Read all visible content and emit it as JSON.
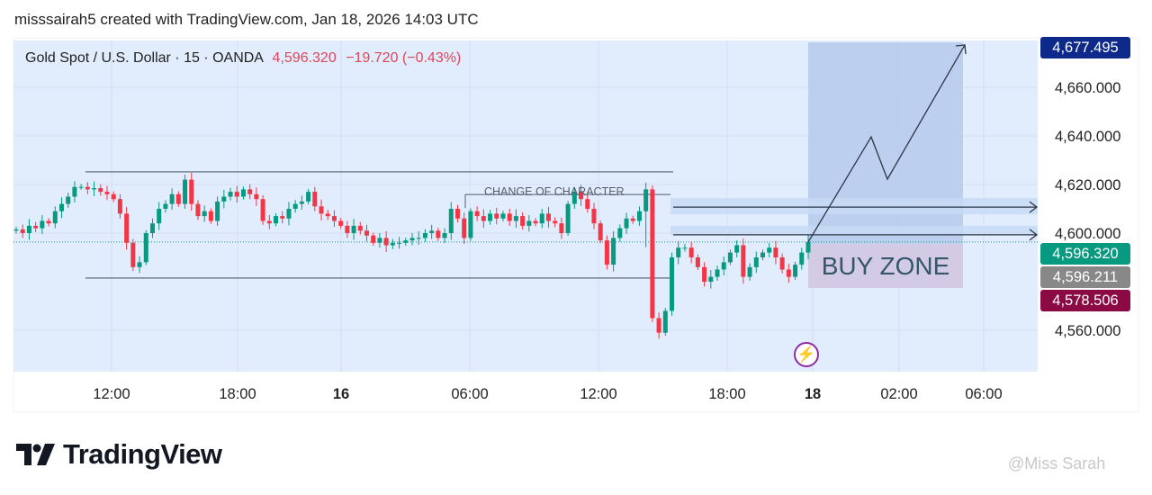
{
  "header": {
    "attribution": "misssairah5 created with TradingView.com, Jan 18, 2026 14:03 UTC"
  },
  "legend": {
    "symbol": "Gold Spot / U.S. Dollar · 15 · OANDA",
    "last": "4,596.320",
    "change": "−19.720 (−0.43%)"
  },
  "chart_data": {
    "type": "candlestick",
    "title": "Gold Spot / U.S. Dollar · 15 · OANDA",
    "ylim": [
      4545,
      4685
    ],
    "y_ticks": [
      "4,660.000",
      "4,640.000",
      "4,620.000",
      "4,600.000",
      "4,560.000"
    ],
    "y_tick_values": [
      4660,
      4640,
      4620,
      4600,
      4560
    ],
    "x_ticks": [
      "12:00",
      "18:00",
      "16",
      "06:00",
      "12:00",
      "18:00",
      "18",
      "02:00",
      "06:00"
    ],
    "grid": true,
    "close": [
      4601.5,
      4600,
      4603,
      4602,
      4605,
      4604,
      4609,
      4612,
      4615,
      4619,
      4619,
      4618,
      4618.5,
      4617,
      4616,
      4614,
      4608,
      4596,
      4586,
      4588,
      4600,
      4604,
      4610,
      4612,
      4616,
      4612,
      4622,
      4612,
      4607,
      4609,
      4605,
      4613,
      4615,
      4617,
      4615,
      4618,
      4616,
      4614,
      4605,
      4604,
      4607,
      4606,
      4610,
      4612,
      4613,
      4617,
      4611,
      4608,
      4607,
      4605,
      4603,
      4600,
      4603,
      4601,
      4599,
      4596,
      4598,
      4595,
      4596,
      4596,
      4597,
      4598,
      4598,
      4600,
      4601,
      4598,
      4600,
      4610,
      4606,
      4598,
      4609,
      4607,
      4605,
      4608,
      4606,
      4608,
      4605,
      4607,
      4603,
      4605,
      4604,
      4608,
      4605,
      4604,
      4600,
      4612,
      4617,
      4614,
      4610,
      4604,
      4597,
      4587,
      4598,
      4602,
      4606,
      4605,
      4609,
      4618,
      4565,
      4559,
      4568,
      4590,
      4594,
      4594,
      4590,
      4586,
      4580,
      4582,
      4585,
      4588,
      4592,
      4595,
      4582,
      4586,
      4590,
      4592,
      4594,
      4590,
      4585,
      4582,
      4587,
      4592,
      4596.32
    ],
    "price_labels": [
      {
        "text": "4,677.495",
        "value": 4677.495,
        "color": "#0d2a8a"
      },
      {
        "text": "4,596.320",
        "value": 4596.32,
        "color": "#089981"
      },
      {
        "text": "4,596.211",
        "value": 4596.211,
        "color": "#888888"
      },
      {
        "text": "4,578.506",
        "value": 4578.506,
        "color": "#8b0a44"
      }
    ],
    "range_high": 4625.2,
    "range_low": 4581.5,
    "choch_level": 4615.9,
    "arrow_levels": [
      4610.7,
      4599.3
    ],
    "buy_zone": [
      4577.4,
      4595.6
    ],
    "target_zone_top": 4678.5,
    "projection_path": [
      4596.3,
      4639.6,
      4622.2,
      4677.4
    ]
  },
  "annotations": {
    "choch": "CHANGE OF CHARACTER",
    "buy_zone": "BUY ZONE"
  },
  "colors": {
    "up": "#089981",
    "down": "#f23645",
    "plot_bg": "#e1ecfc"
  },
  "footer": {
    "logo": "TradingView",
    "watermark": "@Miss Sarah"
  }
}
